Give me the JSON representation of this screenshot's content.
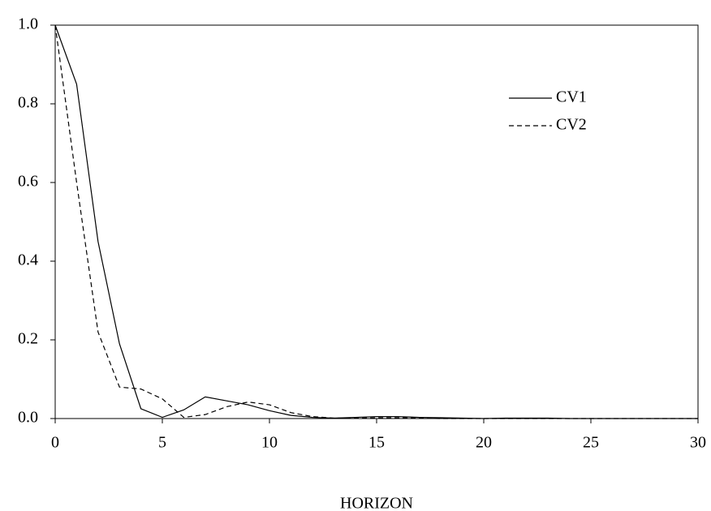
{
  "chart_data": {
    "type": "line",
    "x_label": "HORIZON",
    "x": [
      0,
      1,
      2,
      3,
      4,
      5,
      6,
      7,
      8,
      9,
      10,
      11,
      12,
      13,
      14,
      15,
      16,
      17,
      18,
      19,
      20,
      21,
      22,
      23,
      24,
      25,
      26,
      27,
      28,
      29,
      30
    ],
    "series": [
      {
        "name": "CV1",
        "color": "#000000",
        "style": "solid",
        "values": [
          1.0,
          0.85,
          0.45,
          0.19,
          0.025,
          0.003,
          0.022,
          0.055,
          0.045,
          0.035,
          0.02,
          0.008,
          0.003,
          0.001,
          0.003,
          0.005,
          0.005,
          0.003,
          0.002,
          0.001,
          0.0,
          0.001,
          0.001,
          0.001,
          0.0,
          0.0,
          0.0,
          0.0,
          0.0,
          0.0,
          0.0
        ]
      },
      {
        "name": "CV2",
        "color": "#000000",
        "style": "dashed",
        "values": [
          1.0,
          0.6,
          0.22,
          0.08,
          0.075,
          0.05,
          0.003,
          0.01,
          0.03,
          0.042,
          0.035,
          0.015,
          0.005,
          0.001,
          0.001,
          0.002,
          0.002,
          0.001,
          0.0,
          0.0,
          0.0,
          0.0,
          0.0,
          0.0,
          0.0,
          0.0,
          0.0,
          0.0,
          0.0,
          0.0,
          0.0
        ]
      }
    ],
    "xlim": [
      0,
      30
    ],
    "xticks": [
      0,
      5,
      10,
      15,
      20,
      25,
      30
    ],
    "ylim": [
      0,
      1
    ],
    "yticks": [
      {
        "value": 0,
        "label": "0.0"
      },
      0.2,
      0.4,
      0.6,
      0.8,
      {
        "value": 1,
        "label": "1.0"
      }
    ],
    "legend": "upper right"
  }
}
